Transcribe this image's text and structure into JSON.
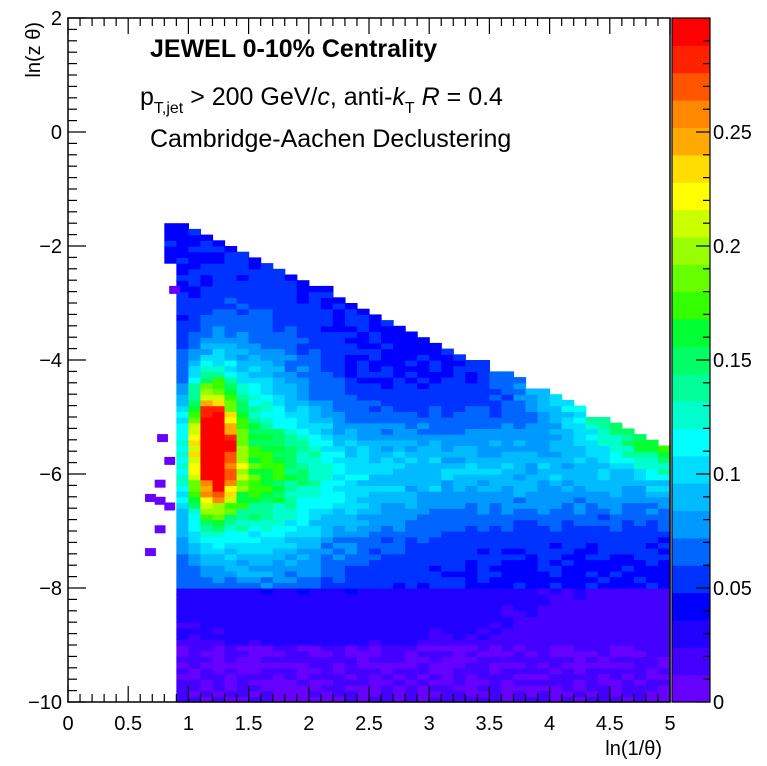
{
  "chart_data": {
    "type": "heatmap",
    "title": "",
    "annotations": {
      "line1": "JEWEL 0-10% Centrality",
      "line2_p": "p",
      "line2_psub": "T,jet",
      "line2_cut": " > 200 GeV/",
      "line2_c": "c",
      "line2_algo": ", anti-",
      "line2_k": "k",
      "line2_ksub": "T",
      "line2_R": "R",
      "line2_rval": " = 0.4",
      "line3": "Cambridge-Aachen Declustering"
    },
    "xlabel": "ln(1/θ)",
    "ylabel": "ln(z θ)",
    "xlim": [
      0,
      5
    ],
    "ylim": [
      -10,
      2
    ],
    "x_ticks": [
      0,
      0.5,
      1,
      1.5,
      2,
      2.5,
      3,
      3.5,
      4,
      4.5,
      5
    ],
    "x_tick_labels": [
      "0",
      "0.5",
      "1",
      "1.5",
      "2",
      "2.5",
      "3",
      "3.5",
      "4",
      "4.5",
      "5"
    ],
    "y_ticks": [
      2,
      0,
      -2,
      -4,
      -6,
      -8,
      -10
    ],
    "y_tick_labels": [
      "2",
      "0",
      "−2",
      "−4",
      "−6",
      "−8",
      "−10"
    ],
    "z_range": [
      0,
      0.3
    ],
    "z_ticks": [
      0,
      0.05,
      0.1,
      0.15,
      0.2,
      0.25
    ],
    "z_tick_labels": [
      "0",
      "0.05",
      "0.1",
      "0.15",
      "0.2",
      "0.25"
    ],
    "bins_x": 50,
    "bins_y": 120,
    "populated_region": {
      "x_start": 0.9,
      "top_edge": [
        [
          0.8,
          -1.5
        ],
        [
          1.0,
          -1.7
        ],
        [
          2.0,
          -2.6
        ],
        [
          3.0,
          -3.6
        ],
        [
          4.0,
          -4.6
        ],
        [
          5.0,
          -5.6
        ]
      ],
      "y_bottom": -10
    },
    "peak": {
      "x": 1.2,
      "y": -5.5,
      "z": 0.29
    },
    "palette": [
      "#6600ff",
      "#4400ff",
      "#2200ff",
      "#0000ff",
      "#0033ff",
      "#0066ff",
      "#0099ff",
      "#00bbff",
      "#00ddff",
      "#00ffff",
      "#00ffcc",
      "#00ff99",
      "#00ff66",
      "#00ff33",
      "#33ff00",
      "#66ff00",
      "#99ff00",
      "#ccff00",
      "#ffff00",
      "#ffdd00",
      "#ffaa00",
      "#ff8800",
      "#ff5500",
      "#ff2200",
      "#ff0000"
    ]
  }
}
